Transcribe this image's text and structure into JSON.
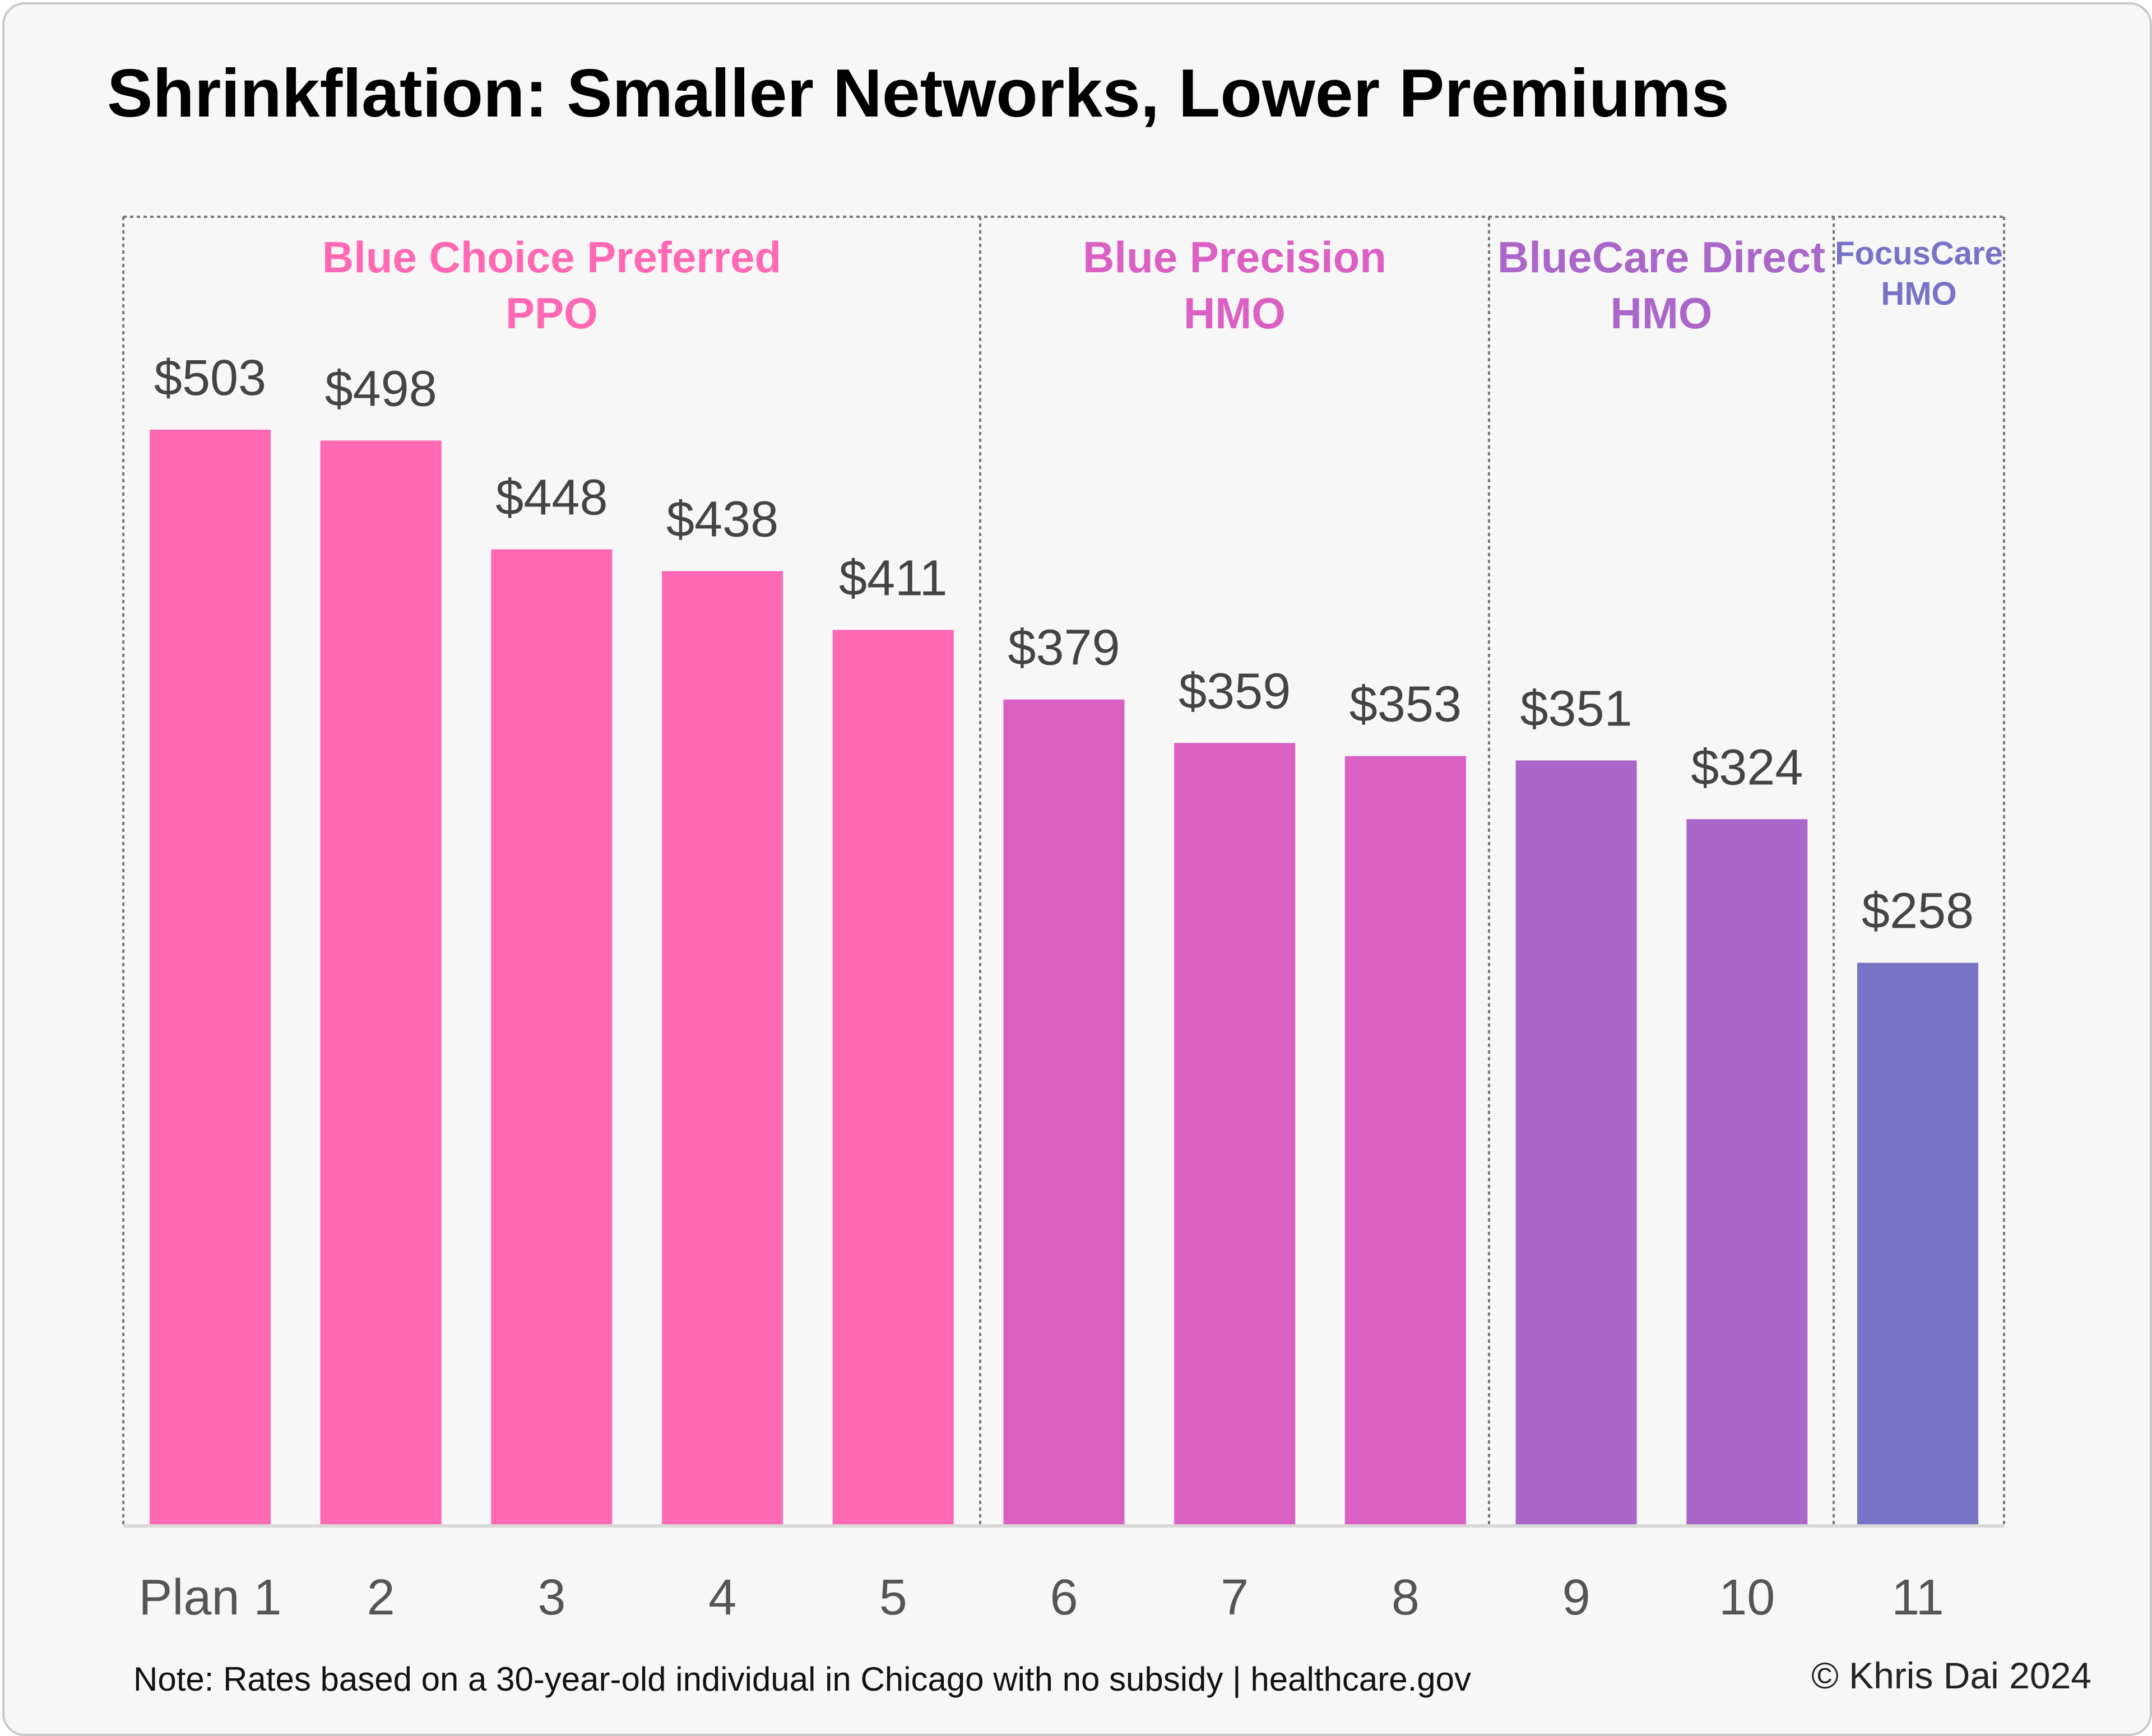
{
  "chart_data": {
    "type": "bar",
    "title": "Shrinkflation: Smaller Networks, Lower Premiums",
    "categories": [
      "Plan 1",
      "2",
      "3",
      "4",
      "5",
      "6",
      "7",
      "8",
      "9",
      "10",
      "11"
    ],
    "values": [
      503,
      498,
      448,
      438,
      411,
      379,
      359,
      353,
      351,
      324,
      258
    ],
    "data_labels": [
      "$503",
      "$498",
      "$448",
      "$438",
      "$411",
      "$379",
      "$359",
      "$353",
      "$351",
      "$324",
      "$258"
    ],
    "ylim": [
      0,
      503
    ],
    "grid": false,
    "groups": [
      {
        "lines": [
          "Blue Choice Preferred",
          "PPO"
        ],
        "plans": [
          1,
          2,
          3,
          4,
          5
        ],
        "color": "#FF69B4"
      },
      {
        "lines": [
          "Blue Precision",
          "HMO"
        ],
        "plans": [
          6,
          7,
          8
        ],
        "color": "#DC5FC3"
      },
      {
        "lines": [
          "BlueCare Direct",
          "HMO"
        ],
        "plans": [
          9,
          10
        ],
        "color": "#AA66C8"
      },
      {
        "lines": [
          "FocusCare",
          "HMO"
        ],
        "plans": [
          11
        ],
        "color": "#7873C6"
      }
    ]
  },
  "footer": {
    "note": "Note: Rates based on a 30-year-old individual in Chicago with no subsidy | healthcare.gov",
    "credit": "© Khris Dai 2024"
  }
}
